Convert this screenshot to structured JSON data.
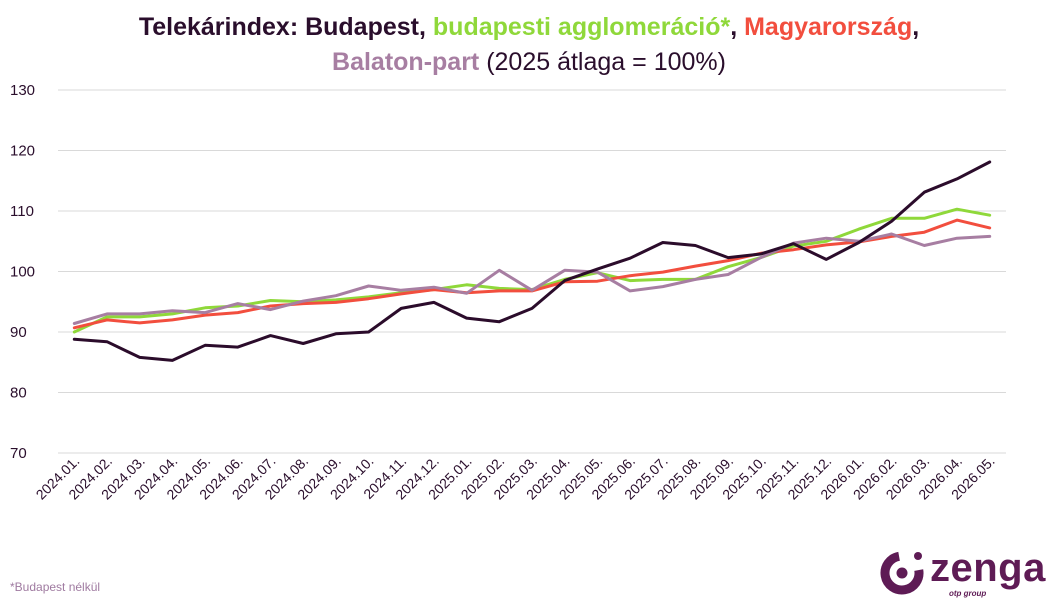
{
  "title": {
    "part1": "Telekárindex: Budapest",
    "sep1": ", ",
    "part2": "budapesti agglomeráció*",
    "sep2": ", ",
    "part3": "Magyarország",
    "sep3": ",",
    "part4": "Balaton-part",
    "part5": " (2025 átlaga = 100%)"
  },
  "footnote": "*Budapest nélkül",
  "logo": {
    "word": "zenga",
    "sub": "otp group"
  },
  "chart_data": {
    "type": "line",
    "categories": [
      "2024.01.",
      "2024.02.",
      "2024.03.",
      "2024.04.",
      "2024.05.",
      "2024.06.",
      "2024.07.",
      "2024.08.",
      "2024.09.",
      "2024.10.",
      "2024.11.",
      "2024.12.",
      "2025.01.",
      "2025.02.",
      "2025.03.",
      "2025.04.",
      "2025.05.",
      "2025.06.",
      "2025.07.",
      "2025.08.",
      "2025.09.",
      "2025.10.",
      "2025.11.",
      "2025.12.",
      "2026.01.",
      "2026.02.",
      "2026.03.",
      "2026.04.",
      "2026.05."
    ],
    "ylim": [
      70,
      130
    ],
    "yticks": [
      "70",
      "80",
      "90",
      "100",
      "110",
      "120",
      "130"
    ],
    "grid": true,
    "series": [
      {
        "name": "budapesti agglomeráció*",
        "color": "#8fd83a",
        "values": [
          90.0,
          92.5,
          92.5,
          93.0,
          94.0,
          94.3,
          95.2,
          95.0,
          95.3,
          95.8,
          96.5,
          97.0,
          97.8,
          97.2,
          97.0,
          98.7,
          99.8,
          98.5,
          98.7,
          98.7,
          100.8,
          102.3,
          104.2,
          105.0,
          107.0,
          108.8,
          108.8,
          110.3,
          109.3
        ]
      },
      {
        "name": "Magyarország",
        "color": "#f24e3e",
        "values": [
          90.7,
          92.0,
          91.5,
          92.0,
          92.8,
          93.2,
          94.3,
          94.7,
          94.9,
          95.5,
          96.3,
          97.0,
          96.5,
          96.8,
          96.8,
          98.3,
          98.4,
          99.3,
          99.9,
          100.9,
          101.8,
          103.0,
          103.6,
          104.4,
          104.9,
          105.8,
          106.5,
          108.5,
          107.2
        ]
      },
      {
        "name": "Balaton-part",
        "color": "#a77ea2",
        "values": [
          91.4,
          93.0,
          93.0,
          93.5,
          93.2,
          94.7,
          93.7,
          95.1,
          96.0,
          97.6,
          96.9,
          97.4,
          96.4,
          100.2,
          96.9,
          100.2,
          99.9,
          96.8,
          97.5,
          98.7,
          99.5,
          102.3,
          104.7,
          105.5,
          105.0,
          106.2,
          104.3,
          105.5,
          105.8
        ]
      },
      {
        "name": "Budapest",
        "color": "#2b0c2b",
        "values": [
          88.8,
          88.4,
          85.8,
          85.3,
          87.8,
          87.5,
          89.4,
          88.1,
          89.7,
          90.0,
          93.9,
          94.9,
          92.3,
          91.7,
          93.9,
          98.5,
          100.4,
          102.2,
          104.8,
          104.3,
          102.3,
          102.9,
          104.6,
          102.0,
          104.8,
          108.3,
          113.1,
          115.3,
          118.1
        ]
      }
    ]
  }
}
